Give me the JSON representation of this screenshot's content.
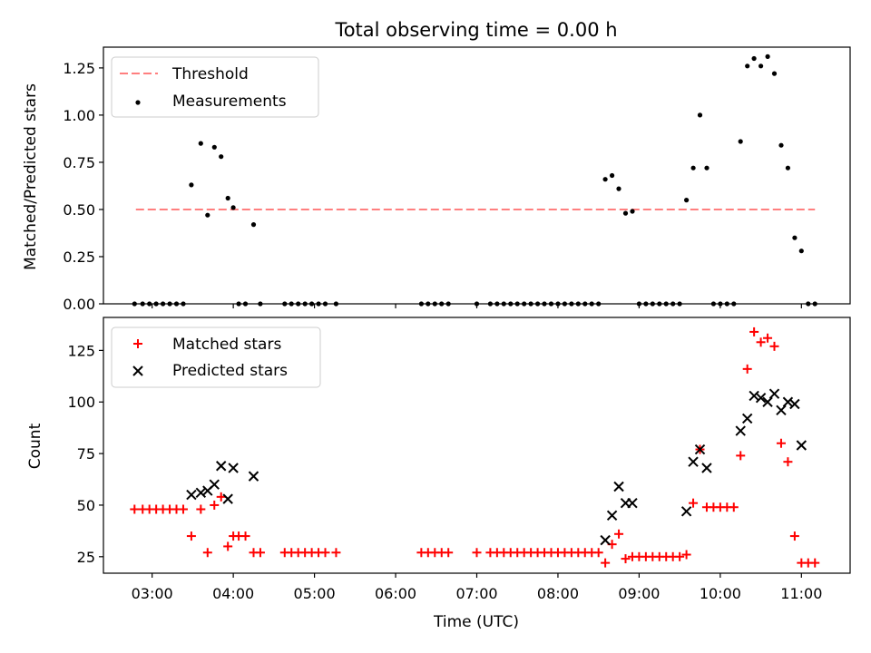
{
  "chart_data": [
    {
      "type": "scatter",
      "panel": "top",
      "title": "Total observing time = 0.00 h",
      "xlabel": "",
      "ylabel": "Matched/Predicted stars",
      "ylim": [
        0,
        1.36
      ],
      "yticks": [
        0,
        0.25,
        0.5,
        0.75,
        1.0,
        1.25
      ],
      "ytick_labels": [
        "0.00",
        "0.25",
        "0.50",
        "0.75",
        "1.00",
        "1.25"
      ],
      "grid": false,
      "legend_position": "top-left",
      "threshold": {
        "name": "Threshold",
        "value": 0.5,
        "x_start": "02:48",
        "x_end": "11:10",
        "color": "#ff7f7f"
      },
      "series": [
        {
          "name": "Measurements",
          "color": "#000000",
          "points": [
            [
              "02:47",
              0
            ],
            [
              "02:53",
              0
            ],
            [
              "02:58",
              0
            ],
            [
              "03:03",
              0
            ],
            [
              "03:08",
              0
            ],
            [
              "03:13",
              0
            ],
            [
              "03:18",
              0
            ],
            [
              "03:23",
              0
            ],
            [
              "03:29",
              0.63
            ],
            [
              "03:36",
              0.85
            ],
            [
              "03:41",
              0.47
            ],
            [
              "03:46",
              0.83
            ],
            [
              "03:51",
              0.78
            ],
            [
              "03:56",
              0.56
            ],
            [
              "04:00",
              0.51
            ],
            [
              "04:04",
              0
            ],
            [
              "04:09",
              0
            ],
            [
              "04:15",
              0.42
            ],
            [
              "04:20",
              0
            ],
            [
              "04:38",
              0
            ],
            [
              "04:43",
              0
            ],
            [
              "04:48",
              0
            ],
            [
              "04:53",
              0
            ],
            [
              "04:58",
              0
            ],
            [
              "05:03",
              0
            ],
            [
              "05:08",
              0
            ],
            [
              "05:16",
              0
            ],
            [
              "06:19",
              0
            ],
            [
              "06:24",
              0
            ],
            [
              "06:29",
              0
            ],
            [
              "06:34",
              0
            ],
            [
              "06:39",
              0
            ],
            [
              "07:00",
              0
            ],
            [
              "07:10",
              0
            ],
            [
              "07:15",
              0
            ],
            [
              "07:20",
              0
            ],
            [
              "07:25",
              0
            ],
            [
              "07:30",
              0
            ],
            [
              "07:35",
              0
            ],
            [
              "07:40",
              0
            ],
            [
              "07:45",
              0
            ],
            [
              "07:50",
              0
            ],
            [
              "07:55",
              0
            ],
            [
              "08:00",
              0
            ],
            [
              "08:05",
              0
            ],
            [
              "08:10",
              0
            ],
            [
              "08:15",
              0
            ],
            [
              "08:20",
              0
            ],
            [
              "08:25",
              0
            ],
            [
              "08:30",
              0
            ],
            [
              "08:35",
              0.66
            ],
            [
              "08:40",
              0.68
            ],
            [
              "08:45",
              0.61
            ],
            [
              "08:50",
              0.48
            ],
            [
              "08:55",
              0.49
            ],
            [
              "09:00",
              0
            ],
            [
              "09:05",
              0
            ],
            [
              "09:10",
              0
            ],
            [
              "09:15",
              0
            ],
            [
              "09:20",
              0
            ],
            [
              "09:25",
              0
            ],
            [
              "09:30",
              0
            ],
            [
              "09:35",
              0.55
            ],
            [
              "09:40",
              0.72
            ],
            [
              "09:45",
              1.0
            ],
            [
              "09:50",
              0.72
            ],
            [
              "09:55",
              0
            ],
            [
              "10:00",
              0
            ],
            [
              "10:05",
              0
            ],
            [
              "10:10",
              0
            ],
            [
              "10:15",
              0.86
            ],
            [
              "10:20",
              1.26
            ],
            [
              "10:25",
              1.3
            ],
            [
              "10:30",
              1.26
            ],
            [
              "10:35",
              1.31
            ],
            [
              "10:40",
              1.22
            ],
            [
              "10:45",
              0.84
            ],
            [
              "10:50",
              0.72
            ],
            [
              "10:55",
              0.35
            ],
            [
              "11:00",
              0.28
            ],
            [
              "11:05",
              0
            ],
            [
              "11:10",
              0
            ]
          ]
        }
      ]
    },
    {
      "type": "scatter",
      "panel": "bottom",
      "title": "",
      "xlabel": "Time (UTC)",
      "ylabel": "Count",
      "ylim": [
        17,
        141
      ],
      "yticks": [
        25,
        50,
        75,
        100,
        125
      ],
      "ytick_labels": [
        "25",
        "50",
        "75",
        "100",
        "125"
      ],
      "xlim": [
        "02:24",
        "11:36"
      ],
      "xticks": [
        "03:00",
        "04:00",
        "05:00",
        "06:00",
        "07:00",
        "08:00",
        "09:00",
        "10:00",
        "11:00"
      ],
      "xtick_labels": [
        "03:00",
        "04:00",
        "05:00",
        "06:00",
        "07:00",
        "08:00",
        "09:00",
        "10:00",
        "11:00"
      ],
      "grid": false,
      "legend_position": "top-left",
      "series": [
        {
          "name": "Matched stars",
          "marker": "plus",
          "color": "#ff0000",
          "points": [
            [
              "02:47",
              48
            ],
            [
              "02:53",
              48
            ],
            [
              "02:58",
              48
            ],
            [
              "03:03",
              48
            ],
            [
              "03:08",
              48
            ],
            [
              "03:13",
              48
            ],
            [
              "03:18",
              48
            ],
            [
              "03:23",
              48
            ],
            [
              "03:29",
              35
            ],
            [
              "03:36",
              48
            ],
            [
              "03:41",
              27
            ],
            [
              "03:46",
              50
            ],
            [
              "03:51",
              54
            ],
            [
              "03:56",
              30
            ],
            [
              "04:00",
              35
            ],
            [
              "04:04",
              35
            ],
            [
              "04:09",
              35
            ],
            [
              "04:15",
              27
            ],
            [
              "04:20",
              27
            ],
            [
              "04:38",
              27
            ],
            [
              "04:43",
              27
            ],
            [
              "04:48",
              27
            ],
            [
              "04:53",
              27
            ],
            [
              "04:58",
              27
            ],
            [
              "05:03",
              27
            ],
            [
              "05:08",
              27
            ],
            [
              "05:16",
              27
            ],
            [
              "06:19",
              27
            ],
            [
              "06:24",
              27
            ],
            [
              "06:29",
              27
            ],
            [
              "06:34",
              27
            ],
            [
              "06:39",
              27
            ],
            [
              "07:00",
              27
            ],
            [
              "07:10",
              27
            ],
            [
              "07:15",
              27
            ],
            [
              "07:20",
              27
            ],
            [
              "07:25",
              27
            ],
            [
              "07:30",
              27
            ],
            [
              "07:35",
              27
            ],
            [
              "07:40",
              27
            ],
            [
              "07:45",
              27
            ],
            [
              "07:50",
              27
            ],
            [
              "07:55",
              27
            ],
            [
              "08:00",
              27
            ],
            [
              "08:05",
              27
            ],
            [
              "08:10",
              27
            ],
            [
              "08:15",
              27
            ],
            [
              "08:20",
              27
            ],
            [
              "08:25",
              27
            ],
            [
              "08:30",
              27
            ],
            [
              "08:35",
              22
            ],
            [
              "08:40",
              31
            ],
            [
              "08:45",
              36
            ],
            [
              "08:50",
              24
            ],
            [
              "08:55",
              25
            ],
            [
              "09:00",
              25
            ],
            [
              "09:05",
              25
            ],
            [
              "09:10",
              25
            ],
            [
              "09:15",
              25
            ],
            [
              "09:20",
              25
            ],
            [
              "09:25",
              25
            ],
            [
              "09:30",
              25
            ],
            [
              "09:35",
              26
            ],
            [
              "09:40",
              51
            ],
            [
              "09:45",
              77
            ],
            [
              "09:50",
              49
            ],
            [
              "09:55",
              49
            ],
            [
              "10:00",
              49
            ],
            [
              "10:05",
              49
            ],
            [
              "10:10",
              49
            ],
            [
              "10:15",
              74
            ],
            [
              "10:20",
              116
            ],
            [
              "10:25",
              134
            ],
            [
              "10:30",
              129
            ],
            [
              "10:35",
              131
            ],
            [
              "10:40",
              127
            ],
            [
              "10:45",
              80
            ],
            [
              "10:50",
              71
            ],
            [
              "10:55",
              35
            ],
            [
              "11:00",
              22
            ],
            [
              "11:05",
              22
            ],
            [
              "11:10",
              22
            ]
          ]
        },
        {
          "name": "Predicted stars",
          "marker": "x",
          "color": "#000000",
          "points": [
            [
              "03:29",
              55
            ],
            [
              "03:36",
              56
            ],
            [
              "03:41",
              57
            ],
            [
              "03:46",
              60
            ],
            [
              "03:51",
              69
            ],
            [
              "03:56",
              53
            ],
            [
              "04:00",
              68
            ],
            [
              "04:15",
              64
            ],
            [
              "08:35",
              33
            ],
            [
              "08:40",
              45
            ],
            [
              "08:45",
              59
            ],
            [
              "08:50",
              51
            ],
            [
              "08:55",
              51
            ],
            [
              "09:35",
              47
            ],
            [
              "09:40",
              71
            ],
            [
              "09:45",
              77
            ],
            [
              "09:50",
              68
            ],
            [
              "10:15",
              86
            ],
            [
              "10:20",
              92
            ],
            [
              "10:25",
              103
            ],
            [
              "10:30",
              102
            ],
            [
              "10:35",
              100
            ],
            [
              "10:40",
              104
            ],
            [
              "10:45",
              96
            ],
            [
              "10:50",
              100
            ],
            [
              "10:55",
              99
            ],
            [
              "11:00",
              79
            ]
          ]
        }
      ]
    }
  ]
}
